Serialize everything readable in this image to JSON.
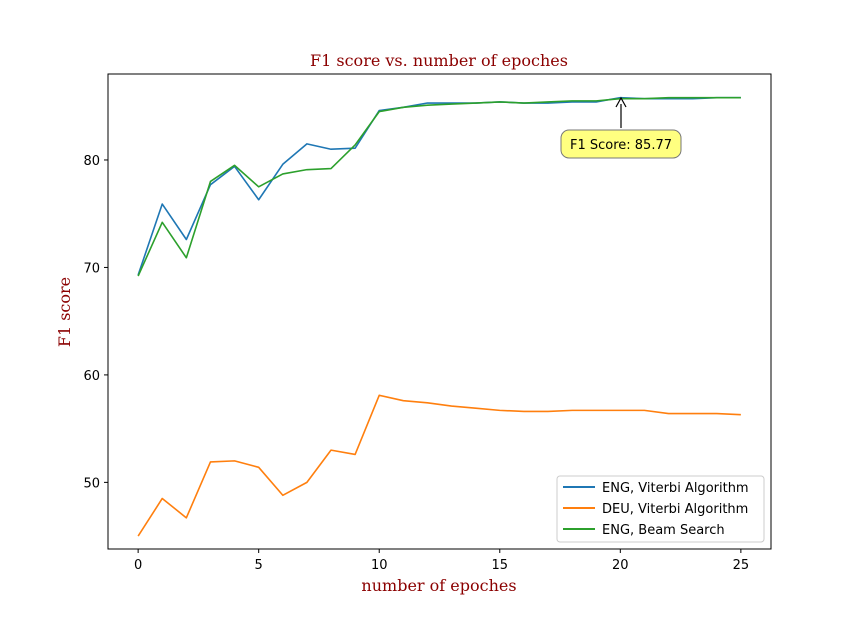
{
  "chart_data": {
    "type": "line",
    "title": "F1 score vs. number of epoches",
    "xlabel": "number of epoches",
    "ylabel": "F1 score",
    "xlim": [
      -1.25,
      26.25
    ],
    "ylim": [
      43.8,
      88.0
    ],
    "xticks": [
      0,
      5,
      10,
      15,
      20,
      25
    ],
    "yticks": [
      50,
      60,
      70,
      80
    ],
    "grid": false,
    "legend_position": "lower-right",
    "x": [
      0,
      1,
      2,
      3,
      4,
      5,
      6,
      7,
      8,
      9,
      10,
      11,
      12,
      13,
      14,
      15,
      16,
      17,
      18,
      19,
      20,
      21,
      22,
      23,
      24,
      25
    ],
    "series": [
      {
        "name": "ENG, Viterbi Algorithm",
        "color": "#1f77b4",
        "values": [
          69.3,
          75.9,
          72.6,
          77.7,
          79.4,
          76.3,
          79.6,
          81.5,
          81.0,
          81.1,
          84.6,
          84.9,
          85.3,
          85.3,
          85.3,
          85.4,
          85.3,
          85.3,
          85.4,
          85.4,
          85.8,
          85.7,
          85.7,
          85.7,
          85.8,
          85.8
        ]
      },
      {
        "name": "DEU, Viterbi Algorithm",
        "color": "#ff7f0e",
        "values": [
          45.0,
          48.5,
          46.7,
          51.9,
          52.0,
          51.4,
          48.8,
          50.0,
          53.0,
          52.6,
          58.1,
          57.6,
          57.4,
          57.1,
          56.9,
          56.7,
          56.6,
          56.6,
          56.7,
          56.7,
          56.7,
          56.7,
          56.4,
          56.4,
          56.4,
          56.3
        ]
      },
      {
        "name": "ENG, Beam Search",
        "color": "#2ca02c",
        "values": [
          69.2,
          74.2,
          70.9,
          78.0,
          79.5,
          77.5,
          78.7,
          79.1,
          79.2,
          81.4,
          84.5,
          84.9,
          85.1,
          85.2,
          85.3,
          85.4,
          85.3,
          85.4,
          85.5,
          85.5,
          85.7,
          85.7,
          85.8,
          85.8,
          85.8,
          85.8
        ]
      }
    ],
    "annotation": {
      "text": "F1 Score: 85.77",
      "x": 20,
      "y": 85.77,
      "box_color": "#ffff80"
    }
  }
}
